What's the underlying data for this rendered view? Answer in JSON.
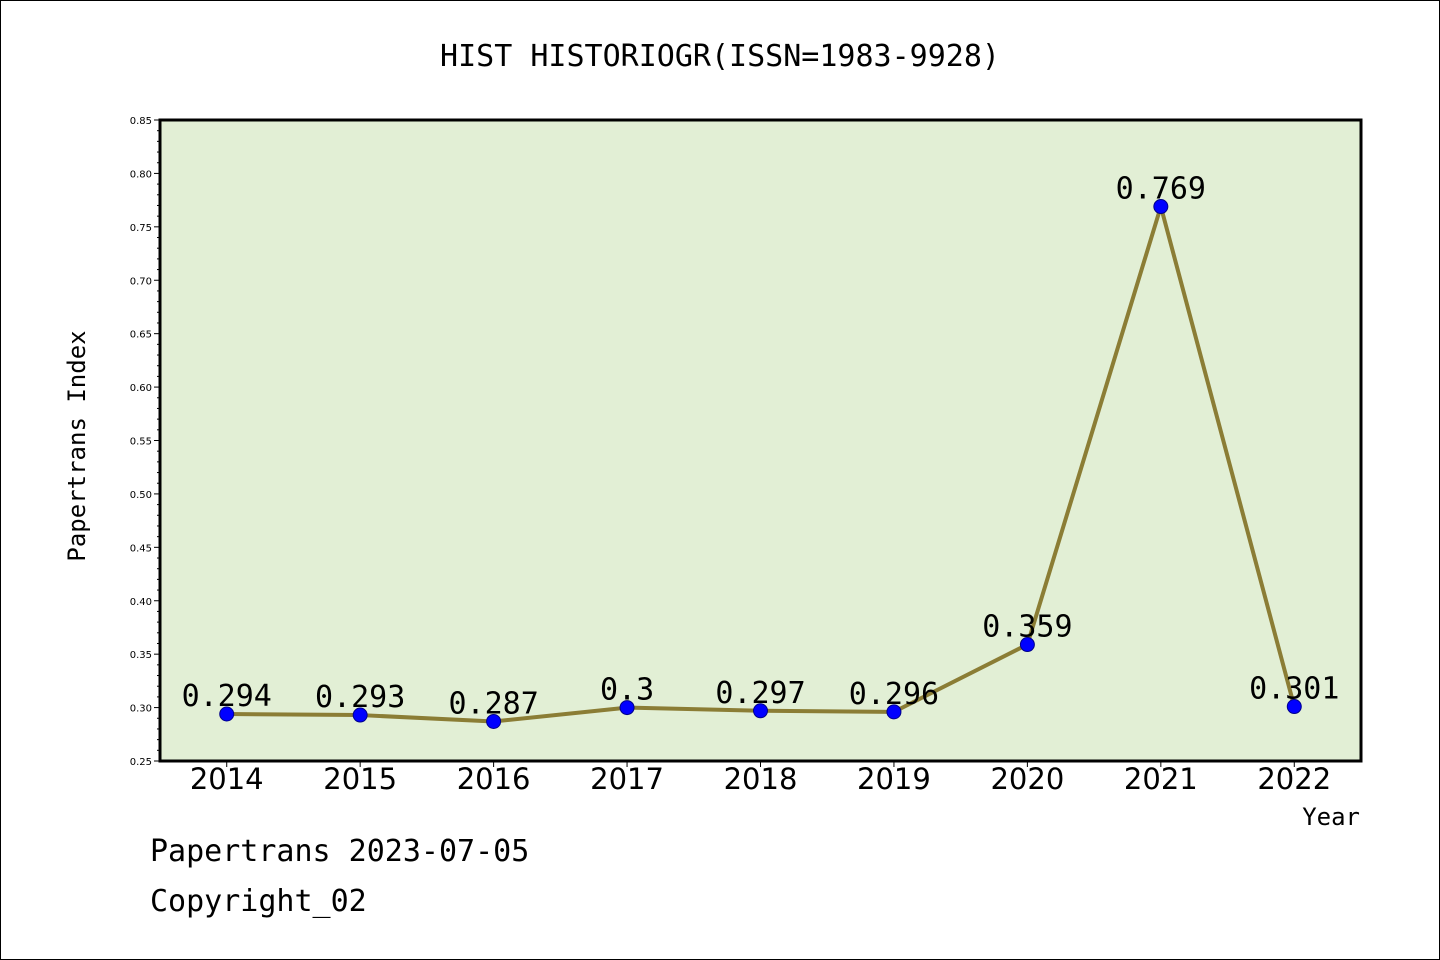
{
  "chart_data": {
    "type": "line",
    "title": "HIST HISTORIOGR(ISSN=1983-9928)",
    "xlabel": "Year",
    "ylabel": "Papertrans Index",
    "categories": [
      "2014",
      "2015",
      "2016",
      "2017",
      "2018",
      "2019",
      "2020",
      "2021",
      "2022"
    ],
    "values": [
      0.294,
      0.293,
      0.287,
      0.3,
      0.297,
      0.296,
      0.359,
      0.769,
      0.301
    ],
    "value_labels": [
      "0.294",
      "0.293",
      "0.287",
      "0.3",
      "0.297",
      "0.296",
      "0.359",
      "0.769",
      "0.301"
    ],
    "ylim": [
      0.25,
      0.85
    ],
    "yticks": [
      "0.25",
      "0.30",
      "0.35",
      "0.40",
      "0.45",
      "0.50",
      "0.55",
      "0.60",
      "0.65",
      "0.70",
      "0.75",
      "0.80",
      "0.85"
    ],
    "grid": false,
    "legend": "none",
    "colors": {
      "plot_background": "#e2efd5",
      "line": "#8b7d35",
      "marker": "#0000ff"
    }
  },
  "footer": {
    "line1": "Papertrans 2023-07-05",
    "line2": "Copyright_02"
  }
}
